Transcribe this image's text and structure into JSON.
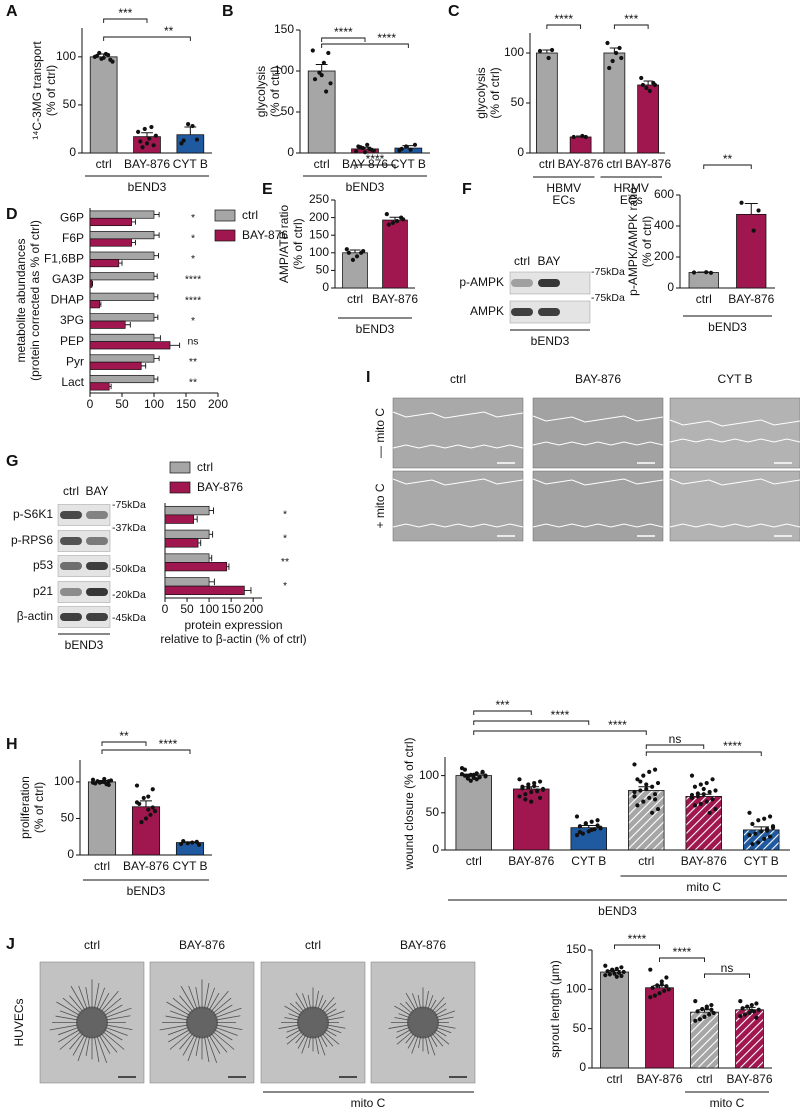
{
  "panel_labels": [
    "A",
    "B",
    "C",
    "D",
    "E",
    "F",
    "G",
    "H",
    "I",
    "J"
  ],
  "chart_data": [
    {
      "type": "bar",
      "ylabel": [
        "¹⁴C-3MG transport",
        "(% of ctrl)"
      ],
      "ylim": [
        0,
        130
      ],
      "yticks": [
        0,
        50,
        100
      ],
      "categories": [
        "ctrl",
        "BAY-876",
        "CYT B"
      ],
      "values": [
        100,
        17,
        19
      ],
      "errors": [
        3,
        4,
        8
      ],
      "colors": [
        "#a6a6a6",
        "#a0174f",
        "#1f5aa0"
      ],
      "points": [
        [
          100,
          97,
          103,
          98,
          101,
          95,
          102,
          99,
          104
        ],
        [
          22,
          8,
          15,
          25,
          12,
          18,
          27,
          10,
          6
        ],
        [
          10,
          14,
          28,
          30,
          13
        ]
      ],
      "significance": [
        "***",
        "**"
      ],
      "groups": [
        [
          "bEND3"
        ]
      ]
    },
    {
      "type": "bar",
      "ylabel": [
        "glycolysis",
        "(% of ctrl)"
      ],
      "ylim": [
        0,
        150
      ],
      "yticks": [
        0,
        50,
        100,
        150
      ],
      "categories": [
        "ctrl",
        "BAY-876",
        "CYT B"
      ],
      "values": [
        100,
        5,
        6
      ],
      "errors": [
        8,
        2,
        3
      ],
      "colors": [
        "#a6a6a6",
        "#a0174f",
        "#1f5aa0"
      ],
      "points": [
        [
          125,
          122,
          110,
          98,
          90,
          85,
          75,
          95
        ],
        [
          2,
          4,
          10,
          6,
          8,
          3,
          5,
          1,
          7
        ],
        [
          3,
          10,
          4,
          8,
          5
        ]
      ],
      "significance": [
        "****",
        "****"
      ],
      "groups": [
        [
          "bEND3"
        ]
      ]
    },
    {
      "type": "bar",
      "ylabel": [
        "glycolysis",
        "(% of ctrl)"
      ],
      "ylim": [
        0,
        120
      ],
      "yticks": [
        0,
        50,
        100
      ],
      "categories": [
        "ctrl",
        "BAY-876",
        "ctrl",
        "BAY-876"
      ],
      "values": [
        100,
        16,
        100,
        68
      ],
      "errors": [
        3,
        1,
        5,
        4
      ],
      "colors": [
        "#a6a6a6",
        "#a0174f",
        "#a6a6a6",
        "#a0174f"
      ],
      "points": [
        [
          102,
          103,
          95
        ],
        [
          16,
          16,
          17
        ],
        [
          110,
          105,
          100,
          92,
          85,
          95
        ],
        [
          75,
          70,
          62,
          65,
          68,
          68
        ]
      ],
      "significance": [
        "****",
        "***"
      ],
      "groups": [
        [
          "HBMV",
          "ECs"
        ],
        [
          "HRMV",
          "ECs"
        ]
      ]
    },
    {
      "type": "hbar",
      "ylabel": [
        "metabolite abundances",
        "(protein corrected as % of ctrl)"
      ],
      "categories": [
        "G6P",
        "F6P",
        "F1,6BP",
        "GA3P",
        "DHAP",
        "3PG",
        "PEP",
        "Pyr",
        "Lact"
      ],
      "series": [
        {
          "name": "ctrl",
          "color": "#a6a6a6",
          "values": [
            100,
            100,
            100,
            100,
            100,
            100,
            100,
            100,
            100
          ],
          "errors": [
            8,
            8,
            7,
            5,
            6,
            6,
            10,
            8,
            6
          ]
        },
        {
          "name": "BAY-876",
          "color": "#a0174f",
          "values": [
            65,
            65,
            45,
            3,
            15,
            55,
            125,
            80,
            30
          ],
          "errors": [
            6,
            6,
            5,
            1,
            2,
            8,
            15,
            7,
            3
          ]
        }
      ],
      "xlim": [
        0,
        200
      ],
      "xticks": [
        0,
        50,
        100,
        150,
        200
      ],
      "significance": [
        "*",
        "*",
        "*",
        "****",
        "****",
        "*",
        "ns",
        "**",
        "**"
      ],
      "legend": "top-right"
    },
    {
      "type": "bar",
      "ylabel": [
        "AMP/ATP ratio",
        "(% of ctrl)"
      ],
      "ylim": [
        0,
        250
      ],
      "yticks": [
        0,
        50,
        100,
        150,
        200,
        250
      ],
      "categories": [
        "ctrl",
        "BAY-876"
      ],
      "values": [
        100,
        193
      ],
      "errors": [
        8,
        8
      ],
      "colors": [
        "#a6a6a6",
        "#a0174f"
      ],
      "points": [
        [
          110,
          100,
          90,
          80,
          100,
          105
        ],
        [
          210,
          200,
          190,
          185,
          180,
          195
        ]
      ],
      "significance": [
        "****"
      ],
      "groups": [
        [
          "bEND3"
        ]
      ]
    },
    {
      "type": "bar",
      "ylabel": [
        "p-AMPK/AMPK ratio",
        "(% of ctrl)"
      ],
      "ylim": [
        0,
        600
      ],
      "yticks": [
        0,
        200,
        400,
        600
      ],
      "categories": [
        "ctrl",
        "BAY-876"
      ],
      "values": [
        100,
        475
      ],
      "errors": [
        3,
        70
      ],
      "colors": [
        "#a6a6a6",
        "#a0174f"
      ],
      "points": [
        [
          100,
          98,
          102
        ],
        [
          550,
          500,
          370
        ]
      ],
      "significance": [
        "**"
      ],
      "groups": [
        [
          "bEND3"
        ]
      ]
    },
    {
      "type": "hbar",
      "xlabel": [
        "protein expression",
        "relative to β-actin (% of ctrl)"
      ],
      "series": [
        {
          "name": "ctrl",
          "color": "#a6a6a6",
          "values": [
            100,
            100,
            100,
            100
          ],
          "errors": [
            10,
            8,
            6,
            12
          ]
        },
        {
          "name": "BAY-876",
          "color": "#a0174f",
          "values": [
            65,
            75,
            140,
            180
          ],
          "errors": [
            8,
            6,
            5,
            15
          ]
        }
      ],
      "xlim": [
        0,
        220
      ],
      "xticks": [
        0,
        50,
        100,
        150,
        200
      ],
      "significance": [
        "*",
        "*",
        "**",
        "*"
      ],
      "legend": "top"
    },
    {
      "type": "bar",
      "ylabel": [
        "proliferation",
        "(% of ctrl)"
      ],
      "ylim": [
        0,
        130
      ],
      "yticks": [
        0,
        50,
        100
      ],
      "categories": [
        "ctrl",
        "BAY-876",
        "CYT B"
      ],
      "values": [
        100,
        66,
        17
      ],
      "errors": [
        2,
        8,
        1
      ],
      "colors": [
        "#a6a6a6",
        "#a0174f",
        "#1f5aa0"
      ],
      "points": [
        [
          103,
          101,
          100,
          99,
          98,
          102,
          97,
          100,
          101,
          99,
          96,
          104
        ],
        [
          95,
          90,
          80,
          78,
          70,
          60,
          55,
          50,
          45,
          72,
          65,
          62
        ],
        [
          15,
          18,
          17,
          16,
          19,
          14
        ]
      ],
      "significance": [
        "**",
        "****"
      ],
      "groups": [
        [
          "bEND3"
        ]
      ]
    },
    {
      "type": "bar",
      "ylabel": [
        "wound closure (% of ctrl)"
      ],
      "ylim": [
        0,
        125
      ],
      "yticks": [
        0,
        50,
        100
      ],
      "categories": [
        "ctrl",
        "BAY-876",
        "CYT B",
        "ctrl",
        "BAY-876",
        "CYT B"
      ],
      "values": [
        100,
        82,
        30,
        80,
        72,
        27
      ],
      "errors": [
        2,
        3,
        3,
        5,
        3,
        4
      ],
      "colors": [
        "#a6a6a6",
        "#a0174f",
        "#1f5aa0",
        "#a6a6a6",
        "#a0174f",
        "#1f5aa0"
      ],
      "hatch": [
        false,
        false,
        false,
        true,
        true,
        true
      ],
      "points": [
        [
          110,
          105,
          103,
          101,
          100,
          99,
          98,
          97,
          96,
          102,
          104,
          95,
          93,
          108,
          100,
          98,
          101,
          99
        ],
        [
          95,
          92,
          90,
          88,
          85,
          82,
          80,
          78,
          75,
          72,
          70,
          86,
          84,
          83,
          81,
          79,
          65,
          68
        ],
        [
          45,
          40,
          38,
          35,
          32,
          30,
          28,
          25,
          22,
          20,
          33,
          27,
          36,
          24,
          29
        ],
        [
          115,
          108,
          105,
          100,
          95,
          90,
          85,
          82,
          80,
          78,
          75,
          70,
          65,
          60,
          55,
          50,
          88,
          92,
          72,
          68
        ],
        [
          100,
          95,
          90,
          88,
          85,
          80,
          78,
          75,
          72,
          70,
          68,
          65,
          62,
          60,
          55,
          50,
          82,
          76,
          74
        ],
        [
          50,
          45,
          42,
          40,
          35,
          30,
          28,
          25,
          22,
          20,
          18,
          15,
          10,
          8,
          32,
          26
        ]
      ],
      "significance": [
        "***",
        "****",
        "****",
        "ns",
        "****"
      ],
      "groups": [
        [
          "mito C"
        ],
        [
          "bEND3"
        ]
      ]
    },
    {
      "type": "bar",
      "ylabel": [
        "sprout length (μm)"
      ],
      "ylim": [
        0,
        150
      ],
      "yticks": [
        0,
        50,
        100,
        150
      ],
      "categories": [
        "ctrl",
        "BAY-876",
        "ctrl",
        "BAY-876"
      ],
      "values": [
        122,
        102,
        71,
        74
      ],
      "errors": [
        2,
        3,
        3,
        3
      ],
      "colors": [
        "#a6a6a6",
        "#a0174f",
        "#a6a6a6",
        "#a0174f"
      ],
      "hatch": [
        false,
        false,
        true,
        true
      ],
      "points": [
        [
          130,
          128,
          126,
          125,
          123,
          122,
          121,
          120,
          119,
          118,
          117,
          116,
          124
        ],
        [
          125,
          115,
          110,
          105,
          102,
          100,
          98,
          95,
          92,
          90,
          104,
          106
        ],
        [
          85,
          80,
          78,
          75,
          72,
          70,
          68,
          65,
          62,
          60,
          74,
          76
        ],
        [
          85,
          82,
          80,
          78,
          76,
          74,
          72,
          70,
          68,
          66,
          64,
          73
        ]
      ],
      "significance": [
        "****",
        "****",
        "ns"
      ],
      "groups": [
        [
          "mito C"
        ]
      ]
    }
  ],
  "blots": [
    {
      "lanes": [
        "ctrl",
        "BAY"
      ],
      "rows": [
        "p-AMPK",
        "AMPK"
      ],
      "markers": [
        "-75kDa",
        "-75kDa"
      ],
      "cell_line": "bEND3"
    },
    {
      "lanes": [
        "ctrl",
        "BAY"
      ],
      "rows": [
        "p-S6K1",
        "p-RPS6",
        "p53",
        "p21",
        "β-actin"
      ],
      "markers": [
        "-75kDa",
        "-37kDa",
        "-50kDa",
        "-20kDa",
        "-45kDa"
      ],
      "cell_line": "bEND3"
    }
  ],
  "micrographs": [
    {
      "columns": [
        "ctrl",
        "BAY-876",
        "CYT B"
      ],
      "rows": [
        "— mito C",
        "+ mito C"
      ]
    },
    {
      "columns": [
        "ctrl",
        "BAY-876",
        "ctrl",
        "BAY-876"
      ],
      "rows": [
        "HUVECs"
      ],
      "group": "mito C"
    }
  ]
}
